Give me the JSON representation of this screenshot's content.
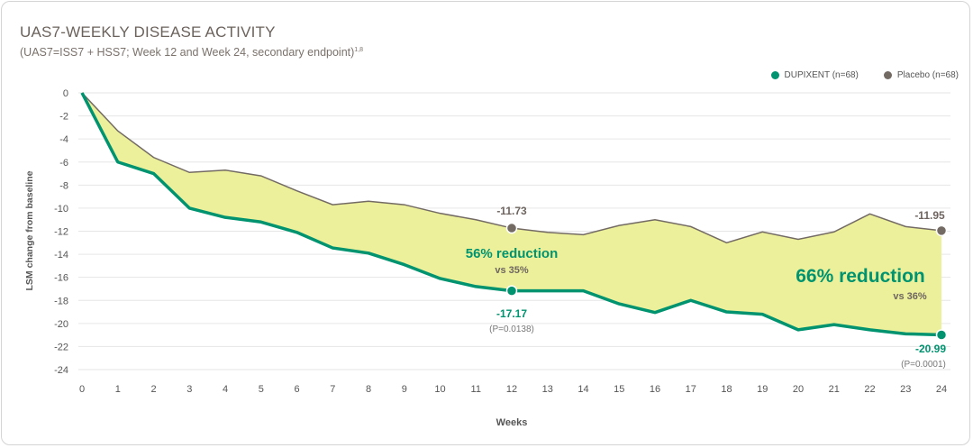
{
  "chart_data": {
    "type": "line",
    "title": "UAS7-WEEKLY DISEASE ACTIVITY",
    "subtitle": "(UAS7=ISS7 + HSS7; Week 12 and Week 24, secondary endpoint)",
    "subtitle_sup": "1,8",
    "xlabel": "Weeks",
    "ylabel": "LSM change from baseline",
    "xlim": [
      0,
      24
    ],
    "ylim": [
      -24,
      0
    ],
    "x_ticks": [
      0,
      1,
      2,
      3,
      4,
      5,
      6,
      7,
      8,
      9,
      10,
      11,
      12,
      13,
      14,
      15,
      16,
      17,
      18,
      19,
      20,
      21,
      22,
      23,
      24
    ],
    "y_ticks": [
      0,
      -2,
      -4,
      -6,
      -8,
      -10,
      -12,
      -14,
      -16,
      -18,
      -20,
      -22,
      -24
    ],
    "grid": "horizontal",
    "legend_position": "top-right",
    "x": [
      0,
      1,
      2,
      3,
      4,
      5,
      6,
      7,
      8,
      9,
      10,
      11,
      12,
      13,
      14,
      15,
      16,
      17,
      18,
      19,
      20,
      21,
      22,
      23,
      24
    ],
    "series": [
      {
        "name": "DUPIXENT (n=68)",
        "color": "#00936f",
        "values": [
          0,
          -6.0,
          -7.0,
          -10.0,
          -10.8,
          -11.2,
          -12.1,
          -13.45,
          -13.9,
          -14.9,
          -16.1,
          -16.8,
          -17.17,
          -17.17,
          -17.17,
          -18.3,
          -19.05,
          -18.0,
          -19.0,
          -19.2,
          -20.55,
          -20.1,
          -20.55,
          -20.9,
          -20.99
        ]
      },
      {
        "name": "Placebo (n=68)",
        "color": "#736a64",
        "values": [
          0,
          -3.3,
          -5.6,
          -6.9,
          -6.7,
          -7.2,
          -8.5,
          -9.7,
          -9.4,
          -9.7,
          -10.45,
          -11.0,
          -11.73,
          -12.1,
          -12.3,
          -11.5,
          -11.0,
          -11.6,
          -13.0,
          -12.06,
          -12.7,
          -12.06,
          -10.5,
          -11.6,
          -11.95
        ]
      }
    ],
    "fill_color": "#ecf09a",
    "annotations": {
      "placebo_wk12": "-11.73",
      "dupi_wk12": "-17.17",
      "p_wk12": "(P=0.0138)",
      "reduction_wk12": "56% reduction",
      "vs_wk12": "vs 35%",
      "placebo_wk24": "-11.95",
      "dupi_wk24": "-20.99",
      "p_wk24": "(P=0.0001)",
      "reduction_wk24": "66% reduction",
      "vs_wk24": "vs 36%"
    }
  }
}
